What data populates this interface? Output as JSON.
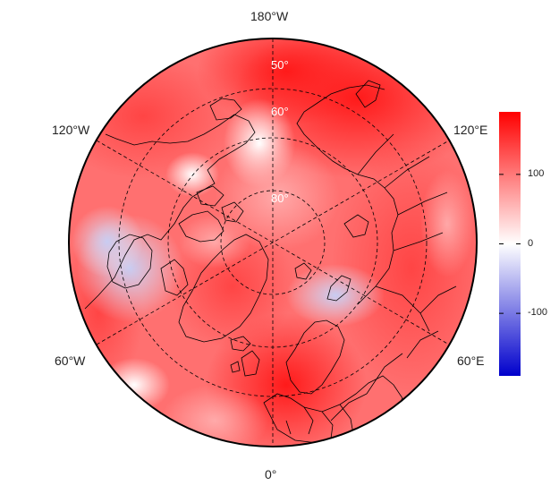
{
  "map": {
    "projection": "north-polar-stereographic",
    "center_longitude_at_bottom": "0°",
    "longitude_labels": {
      "top": "180°W",
      "bottom": "0°",
      "upper_left": "120°W",
      "upper_right": "120°E",
      "lower_left": "60°W",
      "lower_right": "60°E"
    },
    "latitude_labels": [
      "80°",
      "60°",
      "50°"
    ],
    "colors": {
      "positive": "#ff0000",
      "neutral": "#ffffff",
      "negative": "#0000cc",
      "coast": "#000000",
      "grid": "#000000"
    }
  },
  "colorbar": {
    "range": [
      -190,
      190
    ],
    "ticks": [
      {
        "value": 100,
        "label": "100"
      },
      {
        "value": 0,
        "label": "0"
      },
      {
        "value": -100,
        "label": "-100"
      }
    ],
    "colors": {
      "top": "#ff0000",
      "mid": "#ffffff",
      "bottom": "#0000cc"
    }
  }
}
